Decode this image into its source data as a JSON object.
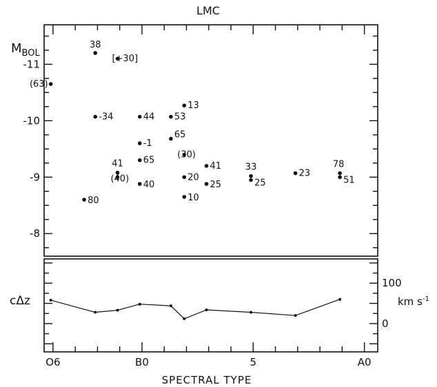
{
  "chart_data": [
    {
      "type": "scatter",
      "title": "LMC",
      "ylabel_main": "M",
      "ylabel_sub": "BOL",
      "xlabel": "SPECTRAL TYPE",
      "ylim": [
        -7.6,
        -11.7
      ],
      "y_ticks": [
        -11,
        -10,
        -9,
        -8
      ],
      "y_tick_labels": [
        "-11",
        "-10",
        "-9",
        "-8"
      ],
      "x_axis": {
        "range": [
          5.6,
          20.6
        ],
        "ticks": [
          6,
          10,
          15,
          20
        ],
        "tick_labels": [
          "O6",
          "B0",
          "5",
          "A0"
        ]
      },
      "points": [
        {
          "x": 5.9,
          "y": -10.65,
          "label": "(63)"
        },
        {
          "x": 7.9,
          "y": -11.2,
          "label": "38"
        },
        {
          "x": 8.9,
          "y": -11.1,
          "label": "[+30]"
        },
        {
          "x": 7.9,
          "y": -10.07,
          "label": "-34"
        },
        {
          "x": 9.9,
          "y": -10.07,
          "label": "44"
        },
        {
          "x": 11.3,
          "y": -10.07,
          "label": "53"
        },
        {
          "x": 11.9,
          "y": -10.27,
          "label": "13"
        },
        {
          "x": 11.3,
          "y": -9.68,
          "label": "65"
        },
        {
          "x": 9.9,
          "y": -9.6,
          "label": "-1"
        },
        {
          "x": 9.9,
          "y": -9.3,
          "label": "65"
        },
        {
          "x": 11.9,
          "y": -9.4,
          "label": "(30)"
        },
        {
          "x": 12.9,
          "y": -9.2,
          "label": "41"
        },
        {
          "x": 8.9,
          "y": -9.08,
          "label": "41"
        },
        {
          "x": 8.9,
          "y": -9.0,
          "label": "(40)"
        },
        {
          "x": 9.9,
          "y": -8.88,
          "label": "40"
        },
        {
          "x": 11.9,
          "y": -9.0,
          "label": "20"
        },
        {
          "x": 12.9,
          "y": -8.88,
          "label": "25"
        },
        {
          "x": 11.9,
          "y": -8.65,
          "label": "10"
        },
        {
          "x": 7.4,
          "y": -8.6,
          "label": "80"
        },
        {
          "x": 14.9,
          "y": -9.02,
          "label": "33"
        },
        {
          "x": 14.9,
          "y": -8.95,
          "label": "25"
        },
        {
          "x": 16.9,
          "y": -9.07,
          "label": "23"
        },
        {
          "x": 18.9,
          "y": -9.07,
          "label": "78"
        },
        {
          "x": 18.9,
          "y": -9.0,
          "label": "51"
        }
      ]
    },
    {
      "type": "line",
      "ylabel": "cΔz",
      "right_ylabel": "km s-1",
      "right_ylabel_text": "km s",
      "right_ylabel_sup": "-1",
      "ylim": [
        -70,
        160
      ],
      "y_ticks": [
        0,
        100
      ],
      "y_tick_labels": [
        "0",
        "100"
      ],
      "series": [
        {
          "x": [
            5.9,
            7.9,
            8.9,
            9.9,
            11.3,
            11.9,
            12.9,
            14.9,
            16.9,
            18.9
          ],
          "values": [
            58,
            28,
            33,
            48,
            44,
            12,
            34,
            28,
            20,
            60
          ]
        }
      ]
    }
  ]
}
